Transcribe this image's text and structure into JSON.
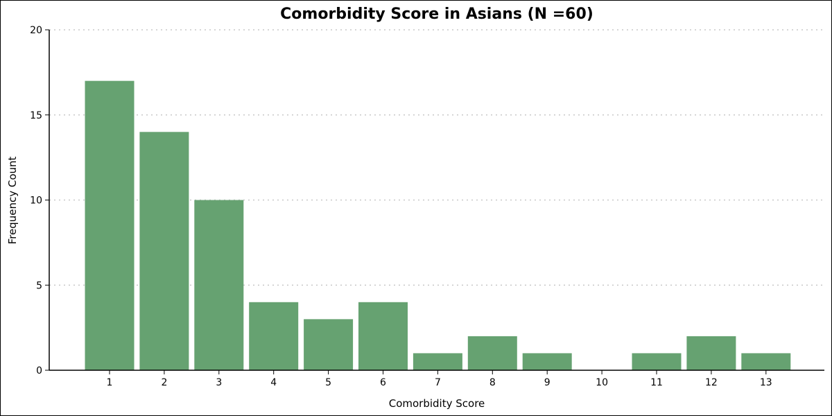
{
  "chart_data": {
    "type": "bar",
    "title": "Comorbidity Score in Asians (N =60)",
    "xlabel": "Comorbidity Score",
    "ylabel": "Frequency Count",
    "categories": [
      "1",
      "2",
      "3",
      "4",
      "5",
      "6",
      "7",
      "8",
      "9",
      "10",
      "11",
      "12",
      "13"
    ],
    "values": [
      17,
      14,
      10,
      4,
      3,
      4,
      1,
      2,
      1,
      0,
      1,
      2,
      1
    ],
    "ylim": [
      0,
      20
    ],
    "yticks": [
      0,
      5,
      10,
      15,
      20
    ],
    "grid": "horizontal-dotted",
    "colors": {
      "bar": "#66a271",
      "grid": "#c8c8c8",
      "axis": "#000000"
    }
  }
}
